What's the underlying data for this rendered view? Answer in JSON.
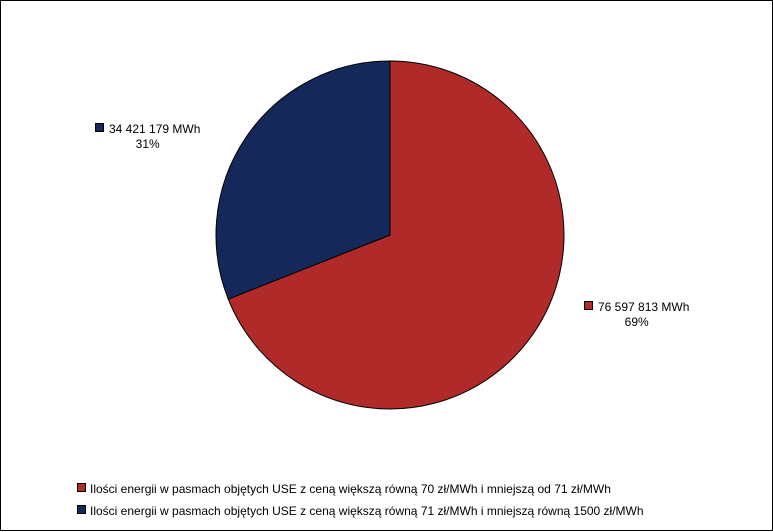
{
  "chart_data": {
    "type": "pie",
    "start_angle_deg": 0,
    "direction": "clockwise",
    "legend_position": "bottom",
    "series": [
      {
        "name": "Ilości energii w pasmach objętych USE z ceną większą równą 70 zł/MWh i mniejszą od 71 zł/MWh",
        "value": 76597813,
        "value_label": "76 597 813 MWh",
        "percent_label": "69%",
        "color": "#b02a2a"
      },
      {
        "name": "Ilości energii w pasmach objętych USE z ceną większą równą 71 zł/MWh i mniejszą równą 1500 zł/MWh",
        "value": 34421179,
        "value_label": "34 421 179 MWh",
        "percent_label": "31%",
        "color": "#14295a"
      }
    ]
  }
}
